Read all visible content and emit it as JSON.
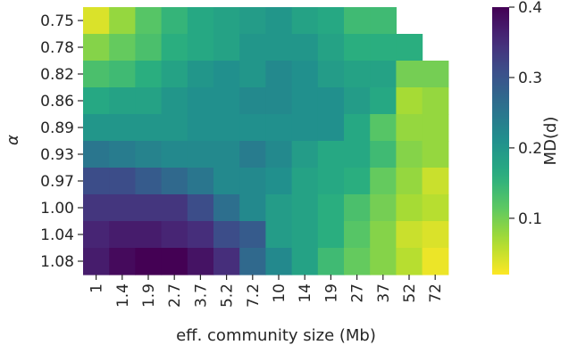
{
  "chart_data": {
    "type": "heatmap",
    "xlabel": "eff. community size (Mb)",
    "ylabel": "α",
    "x_categories": [
      "1",
      "1.4",
      "1.9",
      "2.7",
      "3.7",
      "5.2",
      "7.2",
      "10",
      "14",
      "19",
      "27",
      "37",
      "52",
      "72"
    ],
    "y_categories": [
      "0.75",
      "0.78",
      "0.82",
      "0.86",
      "0.89",
      "0.93",
      "0.97",
      "1.00",
      "1.04",
      "1.08"
    ],
    "values": [
      [
        0.04,
        0.08,
        0.12,
        0.15,
        0.17,
        0.18,
        0.19,
        0.2,
        0.18,
        0.17,
        0.14,
        0.14,
        null,
        null
      ],
      [
        0.09,
        0.11,
        0.13,
        0.16,
        0.17,
        0.18,
        0.2,
        0.2,
        0.2,
        0.18,
        0.16,
        0.16,
        0.16,
        null
      ],
      [
        0.13,
        0.14,
        0.16,
        0.18,
        0.2,
        0.21,
        0.2,
        0.22,
        0.21,
        0.19,
        0.18,
        0.18,
        0.1,
        0.1
      ],
      [
        0.17,
        0.18,
        0.18,
        0.2,
        0.21,
        0.21,
        0.22,
        0.22,
        0.21,
        0.21,
        0.19,
        0.17,
        0.07,
        0.08
      ],
      [
        0.2,
        0.2,
        0.2,
        0.2,
        0.21,
        0.21,
        0.21,
        0.21,
        0.21,
        0.21,
        0.17,
        0.12,
        0.08,
        0.08
      ],
      [
        0.25,
        0.24,
        0.23,
        0.22,
        0.22,
        0.22,
        0.24,
        0.22,
        0.19,
        0.17,
        0.17,
        0.14,
        0.09,
        0.08
      ],
      [
        0.31,
        0.31,
        0.29,
        0.27,
        0.25,
        0.22,
        0.22,
        0.21,
        0.18,
        0.17,
        0.16,
        0.11,
        0.08,
        0.05
      ],
      [
        0.34,
        0.34,
        0.34,
        0.34,
        0.31,
        0.26,
        0.22,
        0.19,
        0.18,
        0.16,
        0.13,
        0.1,
        0.07,
        0.06
      ],
      [
        0.36,
        0.37,
        0.37,
        0.36,
        0.35,
        0.31,
        0.29,
        0.19,
        0.18,
        0.16,
        0.12,
        0.09,
        0.05,
        0.04
      ],
      [
        0.37,
        0.39,
        0.4,
        0.4,
        0.38,
        0.35,
        0.27,
        0.22,
        0.18,
        0.14,
        0.11,
        0.09,
        0.06,
        0.03
      ]
    ],
    "colormap": "viridis_r",
    "colorbar": {
      "label": "MD(d)",
      "range": [
        0.02,
        0.4
      ],
      "ticks": [
        "0.1",
        "0.2",
        "0.3",
        "0.4"
      ]
    },
    "grid": false,
    "legend": "colorbar-right"
  }
}
